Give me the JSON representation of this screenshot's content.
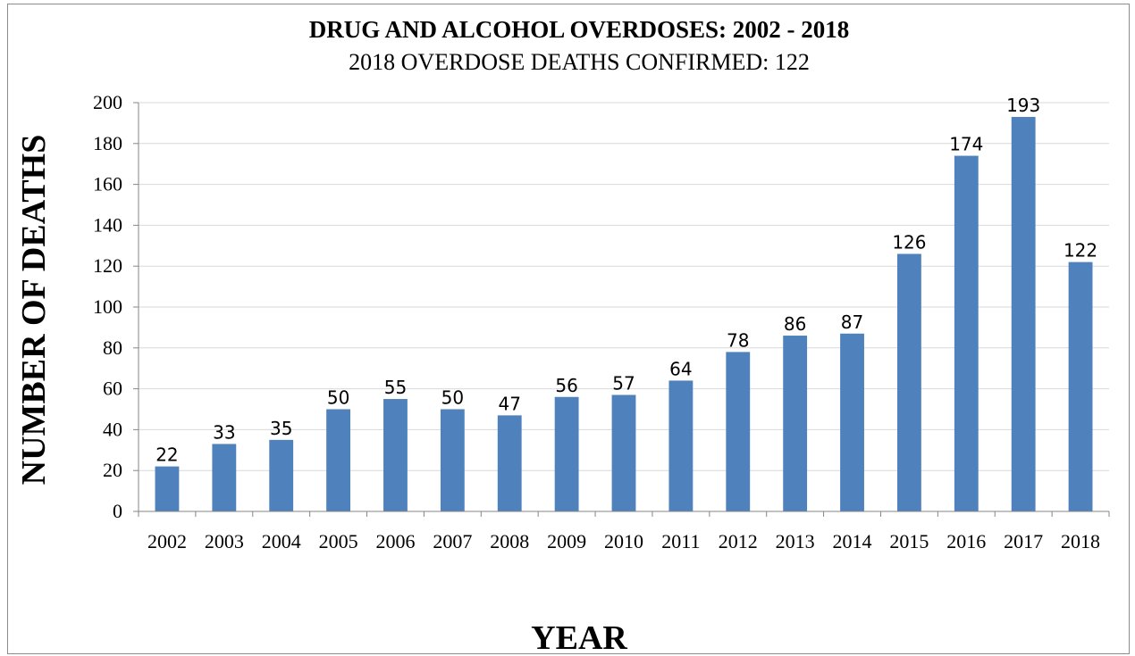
{
  "chart_data": {
    "type": "bar",
    "title": "DRUG AND ALCOHOL OVERDOSES: 2002 - 2018",
    "subtitle": "2018 OVERDOSE DEATHS CONFIRMED: 122",
    "xlabel": "YEAR",
    "ylabel": "NUMBER OF DEATHS",
    "categories": [
      "2002",
      "2003",
      "2004",
      "2005",
      "2006",
      "2007",
      "2008",
      "2009",
      "2010",
      "2011",
      "2012",
      "2013",
      "2014",
      "2015",
      "2016",
      "2017",
      "2018"
    ],
    "values": [
      22,
      33,
      35,
      50,
      55,
      50,
      47,
      56,
      57,
      64,
      78,
      86,
      87,
      126,
      174,
      193,
      122
    ],
    "ylim": [
      0,
      200
    ],
    "yticks": [
      0,
      20,
      40,
      60,
      80,
      100,
      120,
      140,
      160,
      180,
      200
    ],
    "grid": true,
    "legend": "none",
    "data_labels": true,
    "colors": {
      "bar": "#4f81bd",
      "grid": "#d9d9d9",
      "axis": "#868686"
    }
  }
}
